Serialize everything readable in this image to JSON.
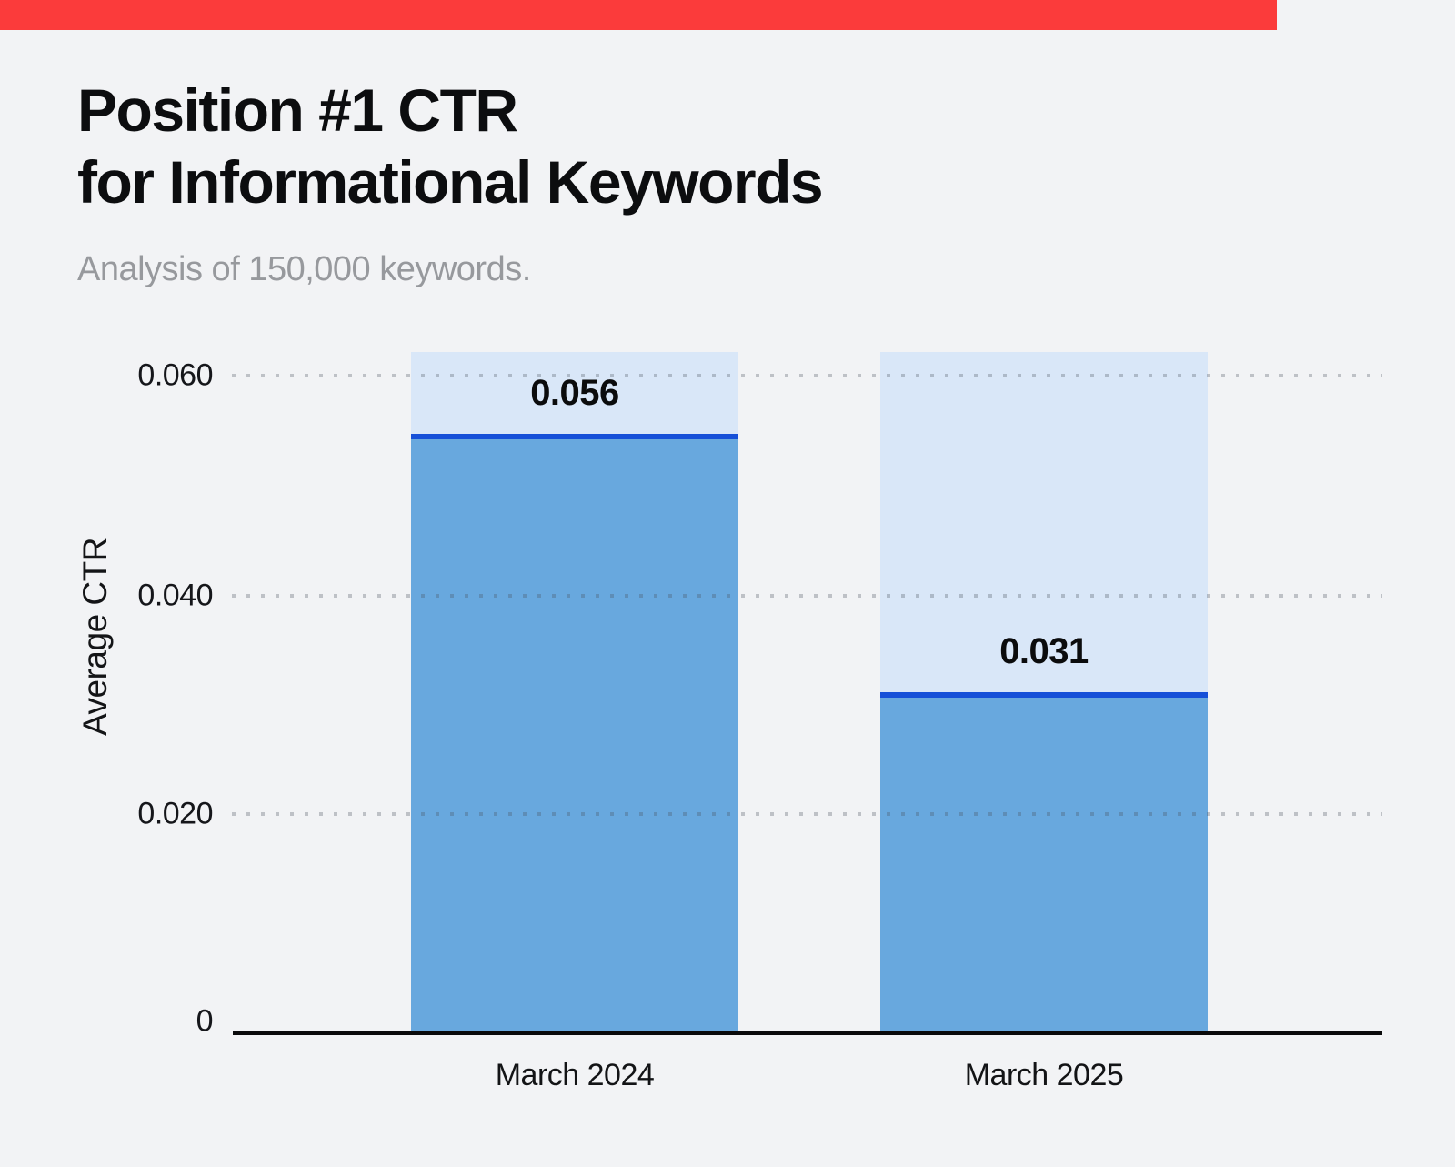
{
  "page": {
    "background_color": "#f2f3f5"
  },
  "top_progress_bar": {
    "color": "#fb3b3b"
  },
  "header": {
    "title_line1": "Position #1 CTR",
    "title_line2": "for Informational Keywords",
    "subtitle": "Analysis of 150,000 keywords."
  },
  "chart_data": {
    "type": "bar",
    "title": "Position #1 CTR for Informational Keywords",
    "subtitle": "Analysis of 150,000 keywords.",
    "categories": [
      "March 2024",
      "March 2025"
    ],
    "values": [
      0.056,
      0.031
    ],
    "value_labels": [
      "0.056",
      "0.031"
    ],
    "xlabel": "",
    "ylabel": "Average CTR",
    "ylim": [
      0,
      0.062
    ],
    "yticks": [
      "0.060",
      "0.040",
      "0.020",
      "0"
    ],
    "ytick_values": [
      0.06,
      0.04,
      0.02,
      0
    ],
    "background_bar_value": 0.062,
    "grid": "horizontal dotted gridlines at each y tick",
    "legend_position": "none",
    "colors": {
      "bar_fill": "#68a8de",
      "bar_background_fill": "#d9e7f8",
      "value_line": "#1650d8",
      "axis_line": "#0a0a0b",
      "grid_dots": "#c6c8cc",
      "value_label_text": "#0b0c0d",
      "tick_text": "#15161a"
    }
  }
}
